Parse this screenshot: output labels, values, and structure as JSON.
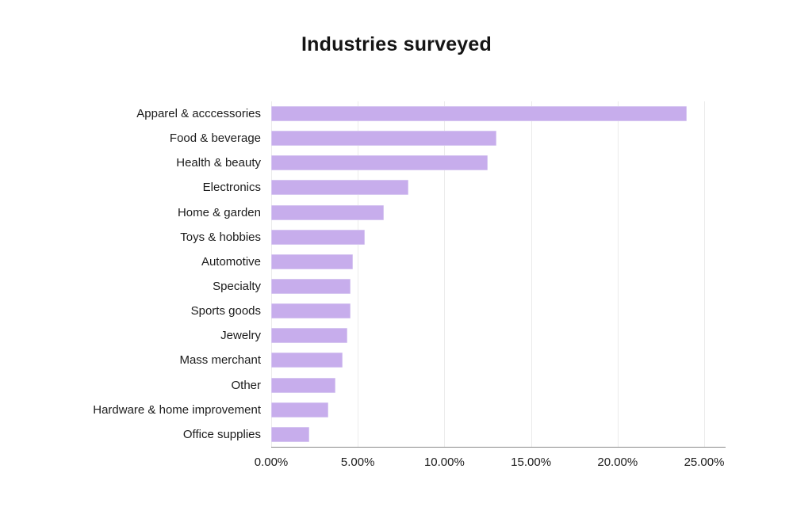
{
  "chart_data": {
    "type": "bar",
    "orientation": "horizontal",
    "title": "Industries surveyed",
    "categories": [
      "Apparel & acccessories",
      "Food & beverage",
      "Health & beauty",
      "Electronics",
      "Home & garden",
      "Toys & hobbies",
      "Automotive",
      "Specialty",
      "Sports goods",
      "Jewelry",
      "Mass merchant",
      "Other",
      "Hardware & home improvement",
      "Office supplies"
    ],
    "values": [
      24.0,
      13.0,
      12.5,
      7.9,
      6.5,
      5.4,
      4.7,
      4.6,
      4.6,
      4.4,
      4.1,
      3.7,
      3.3,
      2.2
    ],
    "unit": "%",
    "xlabel": "",
    "ylabel": "",
    "xlim": [
      0,
      25
    ],
    "x_ticks": [
      "0.00%",
      "5.00%",
      "10.00%",
      "15.00%",
      "20.00%",
      "25.00%"
    ],
    "x_tick_values": [
      0,
      5,
      10,
      15,
      20,
      25
    ],
    "grid": true,
    "legend": false,
    "colors": {
      "bar_fill": "#c7adec",
      "bar_border": "#d6c6f1",
      "gridline": "#ebebeb",
      "axis_line": "#8a8a8a",
      "text": "#1b1b1b",
      "background": "#ffffff"
    }
  }
}
